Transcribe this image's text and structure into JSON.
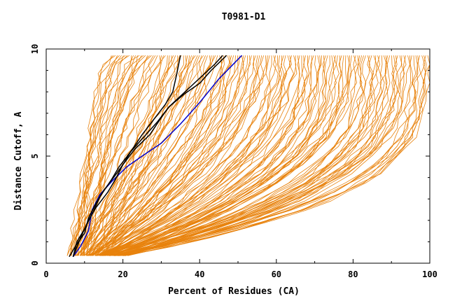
{
  "chart_data": {
    "type": "line",
    "title": "T0981-D1",
    "xlabel": "Percent of Residues (CA)",
    "ylabel": "Distance Cutoff, A",
    "xlim": [
      0,
      100
    ],
    "ylim": [
      0,
      10
    ],
    "x_ticks": [
      0,
      20,
      40,
      60,
      80,
      100
    ],
    "y_ticks": [
      0,
      5,
      10
    ],
    "grid": false,
    "legend": "none",
    "colors": {
      "models": "#E8820C",
      "highlight": "#000000",
      "reference": "#0000CC"
    },
    "series": [
      {
        "role": "reference",
        "color": "#0000CC",
        "x": [
          7,
          9,
          11,
          12,
          14,
          17,
          21,
          25,
          30,
          35,
          40,
          45,
          51
        ],
        "y": [
          0.3,
          0.8,
          1.5,
          2.5,
          3.2,
          3.8,
          4.5,
          5.0,
          5.6,
          6.5,
          7.5,
          8.6,
          9.7
        ]
      },
      {
        "role": "highlight",
        "color": "#000000",
        "x": [
          7,
          8,
          10,
          12,
          14,
          17,
          19,
          22,
          25,
          28,
          31,
          33,
          34,
          35
        ],
        "y": [
          0.3,
          1.0,
          1.6,
          2.3,
          3.1,
          3.9,
          4.5,
          5.2,
          6.0,
          6.7,
          7.4,
          8.0,
          8.8,
          9.7
        ]
      },
      {
        "role": "highlight",
        "color": "#000000",
        "x": [
          7,
          9,
          11,
          13,
          16,
          18,
          20,
          23,
          27,
          30,
          32,
          36,
          40,
          43,
          47
        ],
        "y": [
          0.3,
          1.2,
          2.0,
          2.6,
          3.3,
          3.9,
          4.6,
          5.3,
          6.0,
          6.8,
          7.3,
          7.9,
          8.4,
          9.0,
          9.7
        ]
      },
      {
        "role": "highlight",
        "color": "#000000",
        "x": [
          6,
          8,
          10,
          11,
          13,
          15,
          18,
          20,
          22,
          24,
          26,
          29,
          32,
          35,
          38,
          41,
          44,
          46
        ],
        "y": [
          0.3,
          0.9,
          1.4,
          2.1,
          2.8,
          3.4,
          4.1,
          4.6,
          5.2,
          5.6,
          6.0,
          6.6,
          7.3,
          7.8,
          8.3,
          8.8,
          9.3,
          9.7
        ]
      }
    ]
  }
}
